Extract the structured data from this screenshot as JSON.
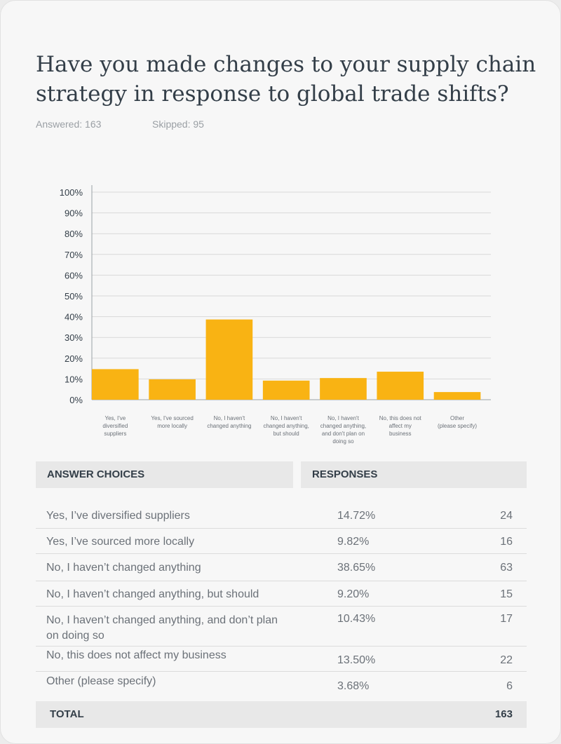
{
  "question": {
    "title": "Have you made changes to your supply chain strategy in response to global trade shifts?",
    "answered": "Answered: 163",
    "skipped": "Skipped: 95"
  },
  "chart_data": {
    "type": "bar",
    "categories": [
      "Yes, I've diversified suppliers",
      "Yes, I've sourced more locally",
      "No, I haven't changed anything",
      "No, I haven't changed anything, but should",
      "No, I haven't changed anything, and don't plan on doing so",
      "No, this does not affect my business",
      "Other (please specify)"
    ],
    "category_lines": [
      [
        "Yes, I've",
        "diversified",
        "suppliers"
      ],
      [
        "Yes, I've sourced",
        "more locally"
      ],
      [
        "No, I haven't",
        "changed anything"
      ],
      [
        "No, I haven't",
        "changed anything,",
        "but should"
      ],
      [
        "No, I haven't",
        "changed anything,",
        "and don't plan on",
        "doing so"
      ],
      [
        "No, this does not",
        "affect my",
        "business"
      ],
      [
        "Other",
        "(please specify)"
      ]
    ],
    "values": [
      14.72,
      9.82,
      38.65,
      9.2,
      10.43,
      13.5,
      3.68
    ],
    "ylim": [
      0,
      100
    ],
    "yticks": [
      "0%",
      "10%",
      "20%",
      "30%",
      "40%",
      "50%",
      "60%",
      "70%",
      "80%",
      "90%",
      "100%"
    ],
    "grid": true,
    "bar_color": "#f9b313"
  },
  "table": {
    "header_answer": "ANSWER CHOICES",
    "header_responses": "RESPONSES",
    "rows": [
      {
        "answer": "Yes, I’ve diversified suppliers",
        "percent": "14.72%",
        "count": "24"
      },
      {
        "answer": "Yes, I’ve sourced more locally",
        "percent": "9.82%",
        "count": "16"
      },
      {
        "answer": "No, I haven’t changed anything",
        "percent": "38.65%",
        "count": "63"
      },
      {
        "answer": "No, I haven’t changed anything, but should",
        "percent": "9.20%",
        "count": "15"
      },
      {
        "answer": "No, I haven’t changed anything, and don’t plan on doing so",
        "percent": "10.43%",
        "count": "17"
      },
      {
        "answer": "No, this does not affect my business",
        "percent": "13.50%",
        "count": "22"
      },
      {
        "answer": "Other (please specify)",
        "percent": "3.68%",
        "count": "6"
      }
    ],
    "total_label": "TOTAL",
    "total_value": "163"
  }
}
